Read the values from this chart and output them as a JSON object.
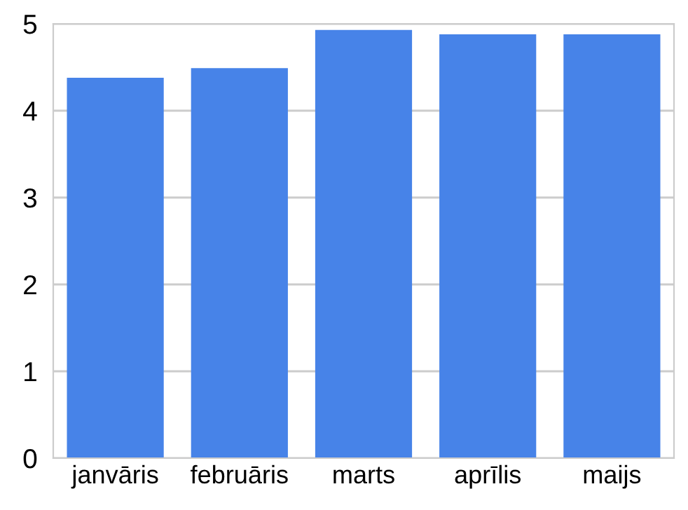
{
  "chart_data": {
    "type": "bar",
    "categories": [
      "janvāris",
      "februāris",
      "marts",
      "aprīlis",
      "maijs"
    ],
    "values": [
      4.38,
      4.49,
      4.93,
      4.88,
      4.88
    ],
    "color": "#4783e8",
    "ylim": [
      0,
      5
    ],
    "yticks": [
      0,
      1,
      2,
      3,
      4,
      5
    ],
    "grid": "y"
  }
}
